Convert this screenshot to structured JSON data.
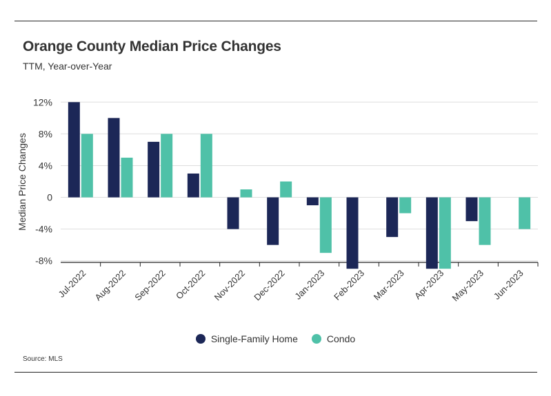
{
  "header": {
    "title": "Orange County Median Price Changes",
    "subtitle": "TTM, Year-over-Year"
  },
  "footer": {
    "source": "Source:  MLS"
  },
  "colors": {
    "single_family": "#1c2757",
    "condo": "#4fc1a8",
    "grid": "#dddddd",
    "axis": "#222222",
    "text": "#333333"
  },
  "chart_data": {
    "type": "bar",
    "categories": [
      "Jul-2022",
      "Aug-2022",
      "Sep-2022",
      "Oct-2022",
      "Nov-2022",
      "Dec-2022",
      "Jan-2023",
      "Feb-2023",
      "Mar-2023",
      "Apr-2023",
      "May-2023",
      "Jun-2023"
    ],
    "series": [
      {
        "name": "Single-Family Home",
        "color": "#1c2757",
        "values": [
          12,
          10,
          7,
          3,
          -4,
          -6,
          -1,
          -9,
          -5,
          -9,
          -3,
          0
        ]
      },
      {
        "name": "Condo",
        "color": "#4fc1a8",
        "values": [
          8,
          5,
          8,
          8,
          1,
          2,
          -7,
          0,
          -2,
          -9,
          -6,
          -4
        ]
      }
    ],
    "ylabel": "Median Price Changes",
    "xlabel": "",
    "ylim": [
      -8,
      12
    ],
    "yticks": [
      12,
      8,
      4,
      0,
      -4,
      -8
    ],
    "ytick_labels": [
      "12%",
      "8%",
      "4%",
      "0",
      "-4%",
      "-8%"
    ],
    "grid": true,
    "legend_position": "bottom-center"
  }
}
